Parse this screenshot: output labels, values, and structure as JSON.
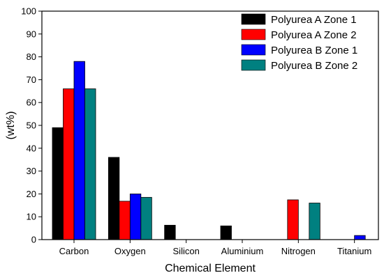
{
  "chart_data": {
    "type": "bar",
    "xlabel": "Chemical Element",
    "ylabel": "(wt%)",
    "ylim": [
      0,
      100
    ],
    "yticks": [
      0,
      10,
      20,
      30,
      40,
      50,
      60,
      70,
      80,
      90,
      100
    ],
    "categories": [
      "Carbon",
      "Oxygen",
      "Silicon",
      "Aluminium",
      "Nitrogen",
      "Titanium"
    ],
    "legend_position": "top-right",
    "series": [
      {
        "name": "Polyurea A Zone 1",
        "color": "#000000",
        "values": [
          49,
          36,
          6.3,
          6,
          0,
          0
        ]
      },
      {
        "name": "Polyurea A Zone 2",
        "color": "#ff0000",
        "values": [
          66,
          16.8,
          0,
          0,
          17.4,
          0
        ]
      },
      {
        "name": "Polyurea B Zone 1",
        "color": "#0000ff",
        "values": [
          78,
          20,
          0,
          0,
          0,
          1.8
        ]
      },
      {
        "name": "Polyurea B Zone 2",
        "color": "#008080",
        "values": [
          66,
          18.5,
          0,
          0,
          16,
          0
        ]
      }
    ]
  }
}
